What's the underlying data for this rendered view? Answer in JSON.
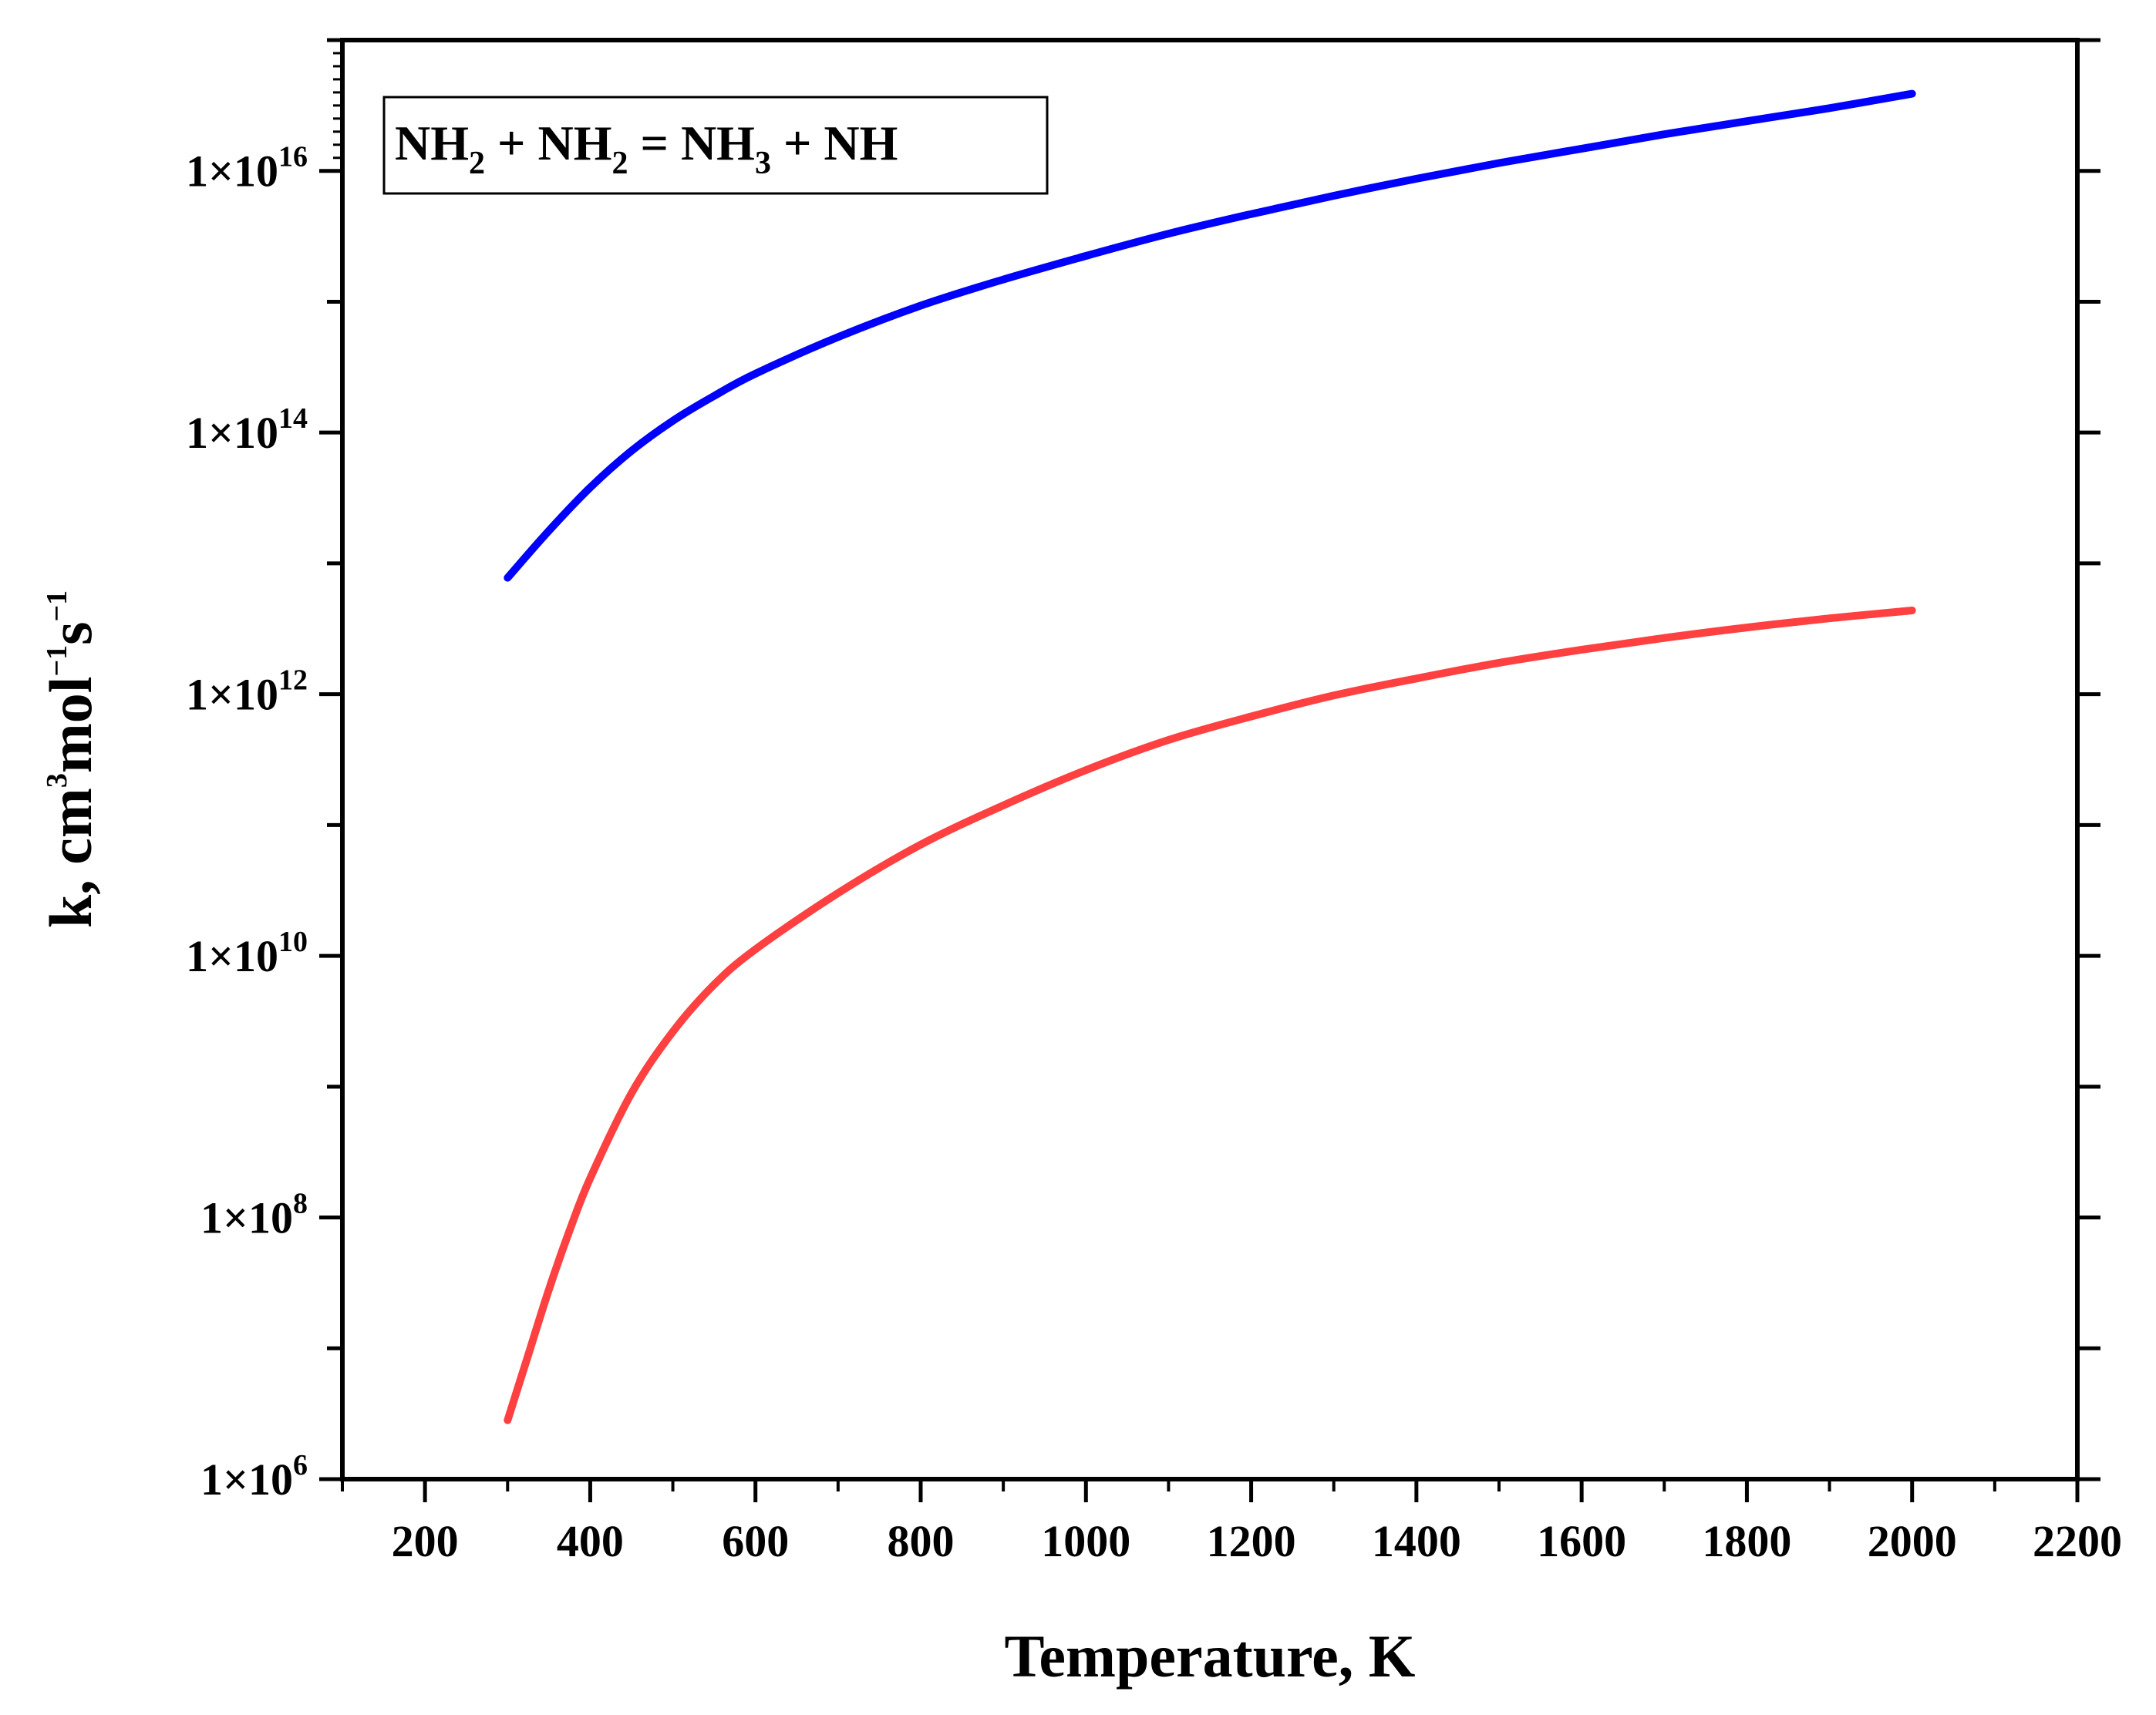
{
  "chart_data": {
    "type": "line",
    "title": "",
    "xlabel": "Temperature, K",
    "ylabel": {
      "prefix": "k, cm",
      "sup1": "3",
      "mid": "mol",
      "sup2": "−1",
      "mid2": "s",
      "sup3": "−1"
    },
    "xlim": [
      100,
      2200
    ],
    "ylim_log10": [
      6,
      17
    ],
    "yscale": "log",
    "grid": false,
    "x_ticks": [
      200,
      400,
      600,
      800,
      1000,
      1200,
      1400,
      1600,
      1800,
      2000,
      2200
    ],
    "x_tick_labels": [
      "200",
      "400",
      "600",
      "800",
      "1000",
      "1200",
      "1400",
      "1600",
      "1800",
      "2000",
      "2200"
    ],
    "y_ticks_log10": [
      6,
      8,
      10,
      12,
      14,
      16
    ],
    "y_tick_labels": [
      {
        "base": "1×10",
        "exp": "6"
      },
      {
        "base": "1×10",
        "exp": "8"
      },
      {
        "base": "1×10",
        "exp": "10"
      },
      {
        "base": "1×10",
        "exp": "12"
      },
      {
        "base": "1×10",
        "exp": "14"
      },
      {
        "base": "1×10",
        "exp": "16"
      }
    ],
    "annotation": {
      "parts": [
        {
          "text": "NH",
          "kind": "normal"
        },
        {
          "text": "2",
          "kind": "sub"
        },
        {
          "text": " + NH",
          "kind": "normal"
        },
        {
          "text": "2",
          "kind": "sub"
        },
        {
          "text": " = NH",
          "kind": "normal"
        },
        {
          "text": "3",
          "kind": "sub"
        },
        {
          "text": " + NH",
          "kind": "normal"
        }
      ],
      "placement": "top-left"
    },
    "series": [
      {
        "name": "upper (blue)",
        "color": "#0000ff",
        "x": [
          300,
          350,
          400,
          450,
          500,
          550,
          600,
          700,
          800,
          900,
          1000,
          1100,
          1200,
          1300,
          1400,
          1500,
          1600,
          1700,
          1800,
          1900,
          2000
        ],
        "log10_y": [
          12.89,
          13.25,
          13.58,
          13.86,
          14.09,
          14.28,
          14.45,
          14.73,
          14.97,
          15.17,
          15.35,
          15.52,
          15.67,
          15.81,
          15.94,
          16.06,
          16.17,
          16.28,
          16.38,
          16.48,
          16.59
        ]
      },
      {
        "name": "lower (red)",
        "color": "#ff4040",
        "x": [
          300,
          325,
          350,
          375,
          400,
          450,
          500,
          550,
          600,
          700,
          800,
          900,
          1000,
          1100,
          1200,
          1300,
          1400,
          1500,
          1600,
          1700,
          1800,
          1900,
          2000
        ],
        "log10_y": [
          6.45,
          6.95,
          7.45,
          7.9,
          8.3,
          8.95,
          9.42,
          9.78,
          10.05,
          10.48,
          10.85,
          11.15,
          11.42,
          11.65,
          11.83,
          11.99,
          12.12,
          12.24,
          12.34,
          12.43,
          12.51,
          12.58,
          12.64
        ]
      }
    ]
  }
}
